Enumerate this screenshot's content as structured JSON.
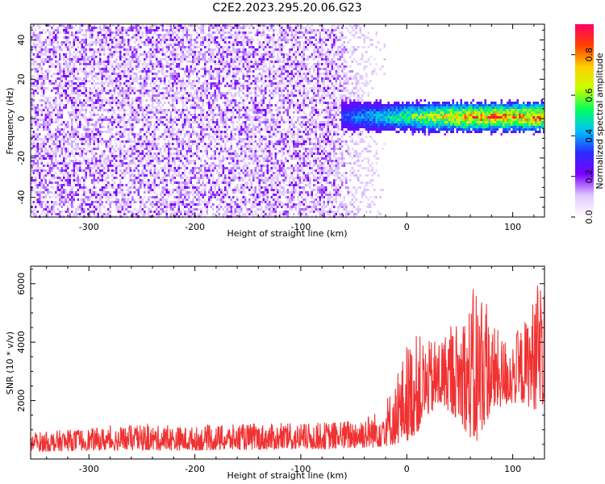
{
  "title": "C2E2.2023.295.20.06.G23",
  "chart_data": [
    {
      "type": "heatmap",
      "xlabel": "Height of straight line (km)",
      "ylabel": "Frequency (Hz)",
      "xlim": [
        -355,
        130
      ],
      "ylim": [
        -50,
        48
      ],
      "x_ticks": [
        -300,
        -200,
        -100,
        0,
        100
      ],
      "y_ticks": [
        -40,
        -20,
        0,
        20,
        40
      ],
      "colorbar": {
        "label": "Normalized spectral amplitude",
        "range": [
          0,
          0.95
        ],
        "ticks": [
          0.0,
          0.2,
          0.4,
          0.6,
          0.8
        ],
        "colors": [
          "#ffffff",
          "#e0c8ff",
          "#7a00ff",
          "#2b2bff",
          "#00c0ff",
          "#00ff60",
          "#c8ff00",
          "#ffd000",
          "#ff4000",
          "#ff0066"
        ]
      },
      "features": {
        "noise_region_x": [
          -355,
          -20
        ],
        "signal_band_x": [
          -62,
          130
        ],
        "signal_band_center_hz": 1.5,
        "signal_band_halfwidth_hz": 6
      }
    },
    {
      "type": "line",
      "xlabel": "Height of straight line (km)",
      "ylabel": "SNR (10 * v/v)",
      "xlim": [
        -355,
        130
      ],
      "ylim": [
        0,
        6600
      ],
      "x_ticks": [
        -300,
        -200,
        -100,
        0,
        100
      ],
      "y_ticks": [
        2000,
        4000,
        6000
      ],
      "series": [
        {
          "color": "#f03232",
          "envelope": {
            "x": [
              -355,
              -300,
              -250,
              -200,
              -150,
              -100,
              -60,
              -30,
              -10,
              0,
              10,
              20,
              35,
              50,
              60,
              65,
              70,
              80,
              90,
              100,
              110,
              120,
              130
            ],
            "upper": [
              900,
              1050,
              1150,
              1100,
              1200,
              1200,
              1300,
              1600,
              2600,
              4000,
              4300,
              4000,
              4300,
              4800,
              5400,
              6200,
              5800,
              4700,
              4200,
              4200,
              4600,
              5600,
              6500
            ],
            "lower": [
              250,
              300,
              300,
              300,
              320,
              330,
              350,
              400,
              500,
              600,
              900,
              1500,
              1800,
              1300,
              700,
              300,
              900,
              1600,
              1800,
              1900,
              1900,
              1700,
              1800
            ]
          }
        }
      ]
    }
  ]
}
